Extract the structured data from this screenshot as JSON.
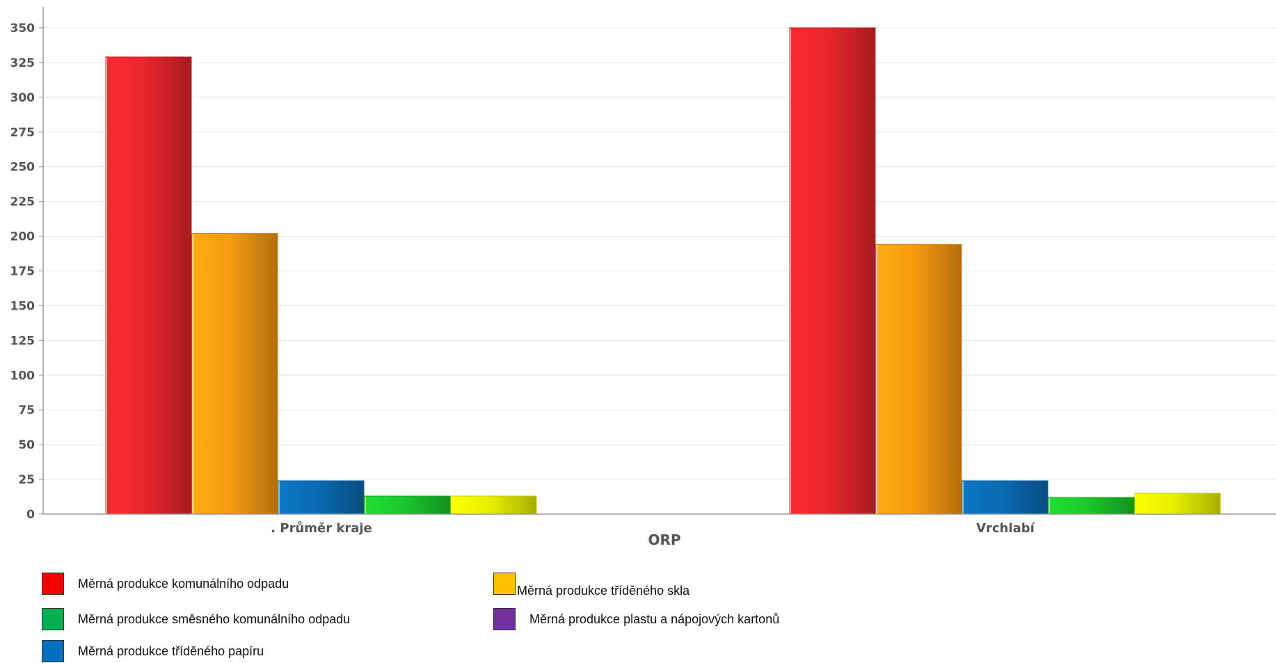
{
  "chart_data": {
    "type": "bar",
    "xlabel": "ORP",
    "ylabel": "",
    "ylim": [
      0,
      365
    ],
    "yticks": [
      0,
      25,
      50,
      75,
      100,
      125,
      150,
      175,
      200,
      225,
      250,
      275,
      300,
      325,
      350
    ],
    "grid": true,
    "legend_position": "bottom",
    "categories": [
      ". Průměr kraje",
      "Vrchlabí"
    ],
    "series": [
      {
        "name": "Měrná produkce komunálního odpadu",
        "color": "#e8262c",
        "values": [
          329,
          350
        ]
      },
      {
        "name": "Měrná produkce tříděného skla",
        "color": "#f79a10",
        "values": [
          202,
          194
        ]
      },
      {
        "name": "Měrná produkce tříděného papíru",
        "color": "#0a6bb3",
        "values": [
          24,
          24
        ]
      },
      {
        "name": "Měrná produkce směsného komunálního odpadu",
        "color": "#1bc82c",
        "values": [
          13,
          12
        ]
      },
      {
        "name": "",
        "color": "#e8f000",
        "values": [
          13,
          15
        ]
      }
    ],
    "legend": [
      {
        "name": "Měrná produkce komunálního odpadu",
        "color": "#f40000"
      },
      {
        "name": "Měrná produkce tříděného skla",
        "color": "#ffc000"
      },
      {
        "name": "Měrná produkce směsného komunálního odpadu",
        "color": "#00b050"
      },
      {
        "name": "Měrná produkce plastu a nápojových kartonů",
        "color": "#7030a0"
      },
      {
        "name": "Měrná produkce tříděného papíru",
        "color": "#0070c0"
      }
    ]
  }
}
